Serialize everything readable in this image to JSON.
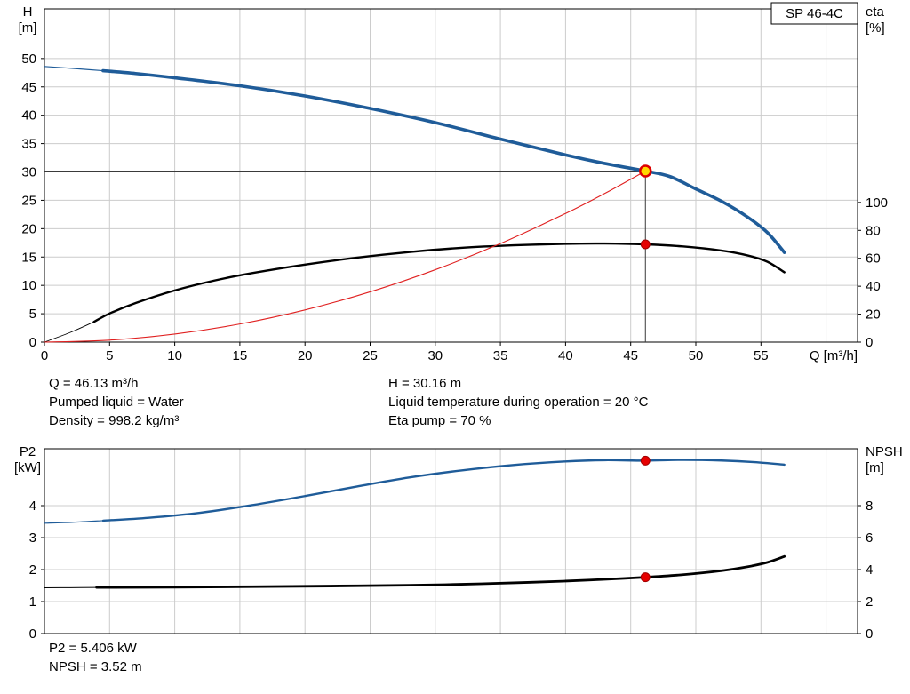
{
  "colors": {
    "background": "#ffffff",
    "grid": "#cccccc",
    "frame": "#000000",
    "crosshair": "#3a3a3a"
  },
  "info_top": {
    "col1": [
      "Q = 46.13 m³/h",
      "Pumped liquid = Water",
      "Density = 998.2 kg/m³"
    ],
    "col2": [
      "H = 30.16 m",
      "Liquid temperature during operation = 20 °C",
      "Eta pump = 70 %"
    ]
  },
  "info_bottom": [
    "P2 = 5.406 kW",
    "NPSH = 3.52 m"
  ],
  "chart_data": [
    {
      "type": "line",
      "title": "SP 46-4C",
      "x_axis": {
        "label": "Q [m³/h]",
        "min": 0,
        "max": 62.4,
        "ticks": [
          0,
          5,
          10,
          15,
          20,
          25,
          30,
          35,
          40,
          45,
          50,
          55
        ],
        "grid": [
          5,
          10,
          15,
          20,
          25,
          30,
          35,
          40,
          45,
          50,
          55,
          60
        ]
      },
      "y_left": {
        "name": "H",
        "unit": "[m]",
        "min": 0,
        "max": 58.8,
        "ticks": [
          0,
          5,
          10,
          15,
          20,
          25,
          30,
          35,
          40,
          45,
          50
        ]
      },
      "y_right": {
        "name": "eta",
        "unit": "[%]",
        "min": 0,
        "max": 100,
        "ticks": [
          0,
          20,
          40,
          60,
          80,
          100
        ]
      },
      "series": [
        {
          "name": "pump-curve",
          "axis": "left",
          "color": "#1f5c99",
          "width": 3.6,
          "thin_width": 1.2,
          "thin": [
            [
              0,
              48.6
            ],
            [
              2.2,
              48.25
            ],
            [
              4.5,
              47.85
            ]
          ],
          "points": [
            [
              4.5,
              47.85
            ],
            [
              7,
              47.35
            ],
            [
              10,
              46.6
            ],
            [
              15,
              45.2
            ],
            [
              20,
              43.4
            ],
            [
              25,
              41.2
            ],
            [
              30,
              38.7
            ],
            [
              35,
              35.8
            ],
            [
              40,
              33.0
            ],
            [
              43,
              31.5
            ],
            [
              46.13,
              30.16
            ],
            [
              48,
              29.2
            ],
            [
              50,
              27.0
            ],
            [
              52,
              24.8
            ],
            [
              54,
              22.0
            ],
            [
              55.5,
              19.3
            ],
            [
              56.8,
              15.8
            ]
          ]
        },
        {
          "name": "eta-curve",
          "axis": "right",
          "color": "#000000",
          "width": 2.4,
          "thin_width": 0.9,
          "thin": [
            [
              0,
              0
            ],
            [
              2,
              7
            ],
            [
              3.8,
              14.5
            ]
          ],
          "points": [
            [
              3.8,
              14.5
            ],
            [
              5,
              20.5
            ],
            [
              7,
              28
            ],
            [
              10,
              37
            ],
            [
              13,
              44
            ],
            [
              16,
              49.5
            ],
            [
              20,
              55.5
            ],
            [
              24,
              60.5
            ],
            [
              28,
              64.5
            ],
            [
              32,
              67.5
            ],
            [
              36,
              69.3
            ],
            [
              40,
              70.4
            ],
            [
              43,
              70.6
            ],
            [
              46.13,
              70
            ],
            [
              49,
              68.5
            ],
            [
              52,
              65.5
            ],
            [
              54,
              62
            ],
            [
              55.5,
              57.5
            ],
            [
              56.8,
              50
            ]
          ]
        },
        {
          "name": "system-curve",
          "axis": "left",
          "color": "#e02020",
          "width": 1.1,
          "points": [
            [
              0,
              0
            ],
            [
              5,
              0.35
            ],
            [
              10,
              1.42
            ],
            [
              15,
              3.19
            ],
            [
              20,
              5.67
            ],
            [
              25,
              8.86
            ],
            [
              30,
              12.76
            ],
            [
              35,
              17.37
            ],
            [
              40,
              22.68
            ],
            [
              43,
              26.2
            ],
            [
              46.13,
              30.16
            ]
          ]
        }
      ],
      "crosshair": {
        "q": 46.13,
        "value": 30.16
      },
      "markers": [
        {
          "name": "duty-point",
          "q": 46.13,
          "value": 30.16,
          "axis": "left",
          "r": 6,
          "fill": "#ffd700",
          "stroke": "#dd0000",
          "stroke_width": 2.5
        },
        {
          "name": "eta-operating-point",
          "q": 46.13,
          "value": 70,
          "axis": "right",
          "r": 5,
          "fill": "#e60000",
          "stroke": "#a00000",
          "stroke_width": 1
        }
      ]
    },
    {
      "type": "line",
      "title": "",
      "x_axis": {
        "label": "",
        "min": 0,
        "max": 62.4,
        "ticks": [],
        "grid": [
          5,
          10,
          15,
          20,
          25,
          30,
          35,
          40,
          45,
          50,
          55,
          60
        ]
      },
      "y_left": {
        "name": "P2",
        "unit": "[kW]",
        "min": 0,
        "max": 5.78,
        "ticks": [
          0,
          1,
          2,
          3,
          4
        ]
      },
      "y_right": {
        "name": "NPSH",
        "unit": "[m]",
        "min": 0,
        "max": 11.56,
        "ticks": [
          0,
          2,
          4,
          6,
          8
        ]
      },
      "series": [
        {
          "name": "p2-curve",
          "axis": "left",
          "color": "#1f5c99",
          "width": 2.4,
          "thin_width": 1.2,
          "thin": [
            [
              0,
              3.45
            ],
            [
              2.2,
              3.48
            ],
            [
              4.5,
              3.53
            ]
          ],
          "points": [
            [
              4.5,
              3.53
            ],
            [
              8,
              3.62
            ],
            [
              12,
              3.78
            ],
            [
              16,
              4.02
            ],
            [
              20,
              4.3
            ],
            [
              24,
              4.6
            ],
            [
              28,
              4.88
            ],
            [
              32,
              5.1
            ],
            [
              36,
              5.27
            ],
            [
              40,
              5.38
            ],
            [
              43,
              5.42
            ],
            [
              46.13,
              5.406
            ],
            [
              49,
              5.43
            ],
            [
              52,
              5.41
            ],
            [
              54.5,
              5.36
            ],
            [
              56.8,
              5.28
            ]
          ]
        },
        {
          "name": "npsh-curve",
          "axis": "right",
          "color": "#000000",
          "width": 2.8,
          "thin_width": 1,
          "thin": [
            [
              0,
              2.86
            ],
            [
              2,
              2.87
            ],
            [
              4,
              2.88
            ]
          ],
          "points": [
            [
              4,
              2.88
            ],
            [
              10,
              2.9
            ],
            [
              16,
              2.93
            ],
            [
              22,
              2.97
            ],
            [
              28,
              3.02
            ],
            [
              32,
              3.08
            ],
            [
              36,
              3.17
            ],
            [
              40,
              3.28
            ],
            [
              43,
              3.39
            ],
            [
              46.13,
              3.52
            ],
            [
              49,
              3.68
            ],
            [
              52,
              3.93
            ],
            [
              54,
              4.18
            ],
            [
              55.5,
              4.45
            ],
            [
              56.8,
              4.82
            ]
          ]
        }
      ],
      "markers": [
        {
          "name": "p2-operating-point",
          "q": 46.13,
          "value": 5.406,
          "axis": "left",
          "r": 5,
          "fill": "#e60000",
          "stroke": "#a00000",
          "stroke_width": 1
        },
        {
          "name": "npsh-operating-point",
          "q": 46.13,
          "value": 3.52,
          "axis": "right",
          "r": 5,
          "fill": "#e60000",
          "stroke": "#a00000",
          "stroke_width": 1
        }
      ]
    }
  ]
}
